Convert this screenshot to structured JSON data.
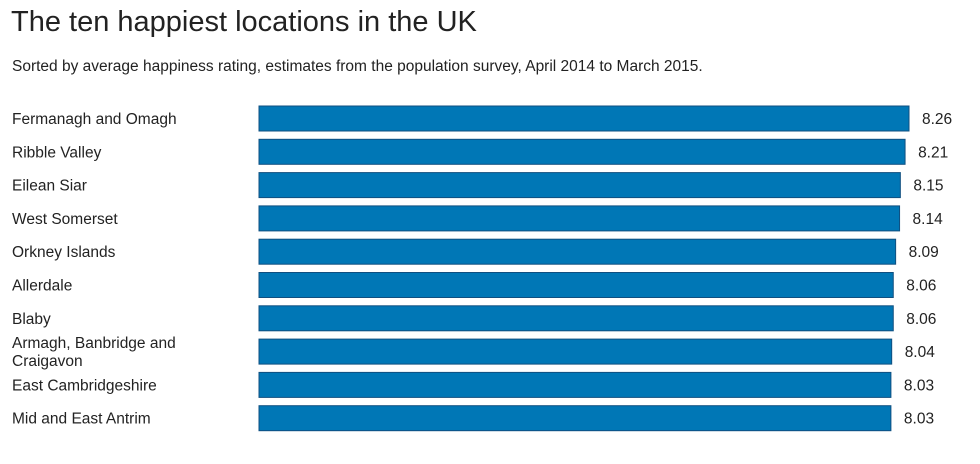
{
  "chart_data": {
    "type": "bar",
    "orientation": "horizontal",
    "title": "The ten happiest locations in the UK",
    "subtitle": "Sorted by average happiness rating, estimates from the population survey, April 2014 to March 2015.",
    "categories": [
      [
        "Fermanagh and Omagh"
      ],
      [
        "Ribble Valley"
      ],
      [
        "Eilean Siar"
      ],
      [
        "West Somerset"
      ],
      [
        "Orkney Islands"
      ],
      [
        "Allerdale"
      ],
      [
        "Blaby"
      ],
      [
        "Armagh, Banbridge and",
        "Craigavon"
      ],
      [
        "East Cambridgeshire"
      ],
      [
        "Mid and East Antrim"
      ]
    ],
    "values": [
      8.26,
      8.21,
      8.15,
      8.14,
      8.09,
      8.06,
      8.06,
      8.04,
      8.03,
      8.03
    ],
    "value_labels": [
      "8.26",
      "8.21",
      "8.15",
      "8.14",
      "8.09",
      "8.06",
      "8.06",
      "8.04",
      "8.03",
      "8.03"
    ],
    "xlim": [
      0,
      8.26
    ],
    "grid": false,
    "bar_color": "#0077b6",
    "bar_border": "#0f4f80"
  }
}
